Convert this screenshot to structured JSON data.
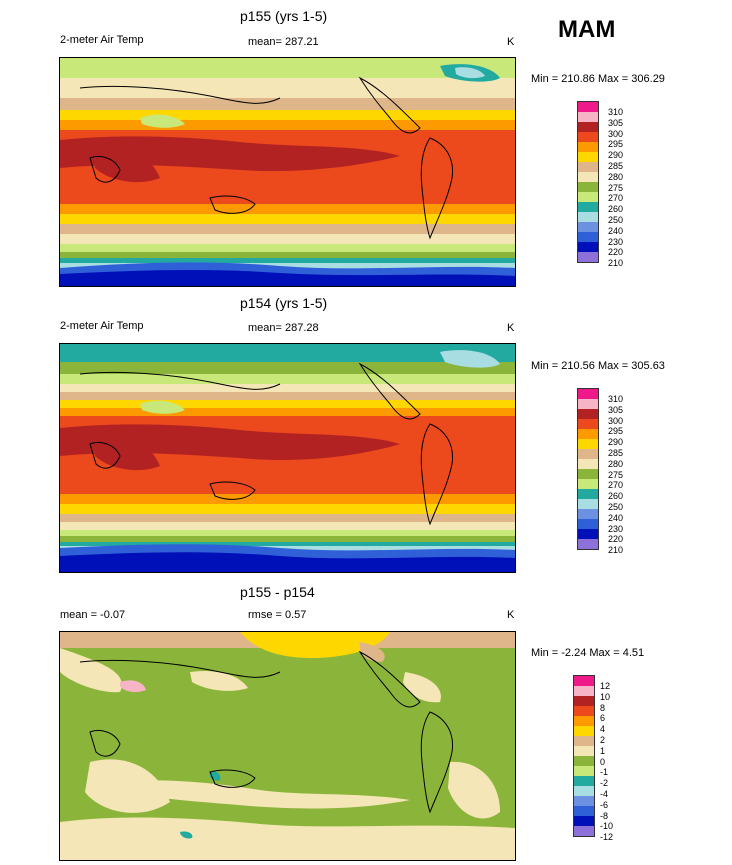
{
  "season": "MAM",
  "panels": [
    {
      "title": "p155 (yrs 1-5)",
      "left_label": "2-meter Air Temp",
      "mid_label": "mean= 287.21",
      "right_label": "K",
      "minmax": "Min = 210.86 Max = 306.29",
      "legend": [
        "310",
        "305",
        "300",
        "295",
        "290",
        "285",
        "280",
        "275",
        "270",
        "260",
        "250",
        "240",
        "230",
        "220",
        "210"
      ]
    },
    {
      "title": "p154 (yrs 1-5)",
      "left_label": "2-meter Air Temp",
      "mid_label": "mean= 287.28",
      "right_label": "K",
      "minmax": "Min = 210.56 Max = 305.63",
      "legend": [
        "310",
        "305",
        "300",
        "295",
        "290",
        "285",
        "280",
        "275",
        "270",
        "260",
        "250",
        "240",
        "230",
        "220",
        "210"
      ]
    },
    {
      "title": "p155 - p154",
      "left_label": "mean =  -0.07",
      "mid_label": "rmse =   0.57",
      "right_label": "K",
      "minmax": "Min =  -2.24 Max =   4.51",
      "legend": [
        "12",
        "10",
        "8",
        "6",
        "4",
        "2",
        "1",
        "0",
        "-1",
        "-2",
        "-4",
        "-6",
        "-8",
        "-10",
        "-12"
      ]
    }
  ],
  "colors": {
    "temp_scale": [
      "#ee1a8a",
      "#f7b4c6",
      "#b22222",
      "#ec4a1c",
      "#fd9a00",
      "#fed700",
      "#dfb68a",
      "#f5e6b7",
      "#8bb53a",
      "#c9e87a",
      "#22aaa1",
      "#a8dde2",
      "#6c91e0",
      "#3060d8",
      "#0010b8",
      "#8e70d9"
    ],
    "diff_scale": [
      "#ee1a8a",
      "#f7b4c6",
      "#b22222",
      "#ec4a1c",
      "#fd9a00",
      "#fed700",
      "#dfb68a",
      "#f5e6b7",
      "#8bb53a",
      "#c9e87a",
      "#22aaa1",
      "#a8dde2",
      "#6c91e0",
      "#3060d8",
      "#0010b8",
      "#8e70d9"
    ]
  }
}
